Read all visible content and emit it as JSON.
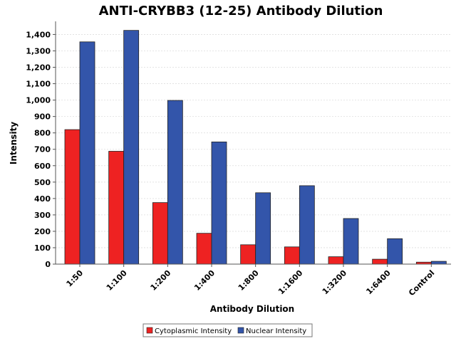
{
  "chart_data": {
    "type": "bar",
    "title": "ANTI-CRYBB3 (12-25) Antibody Dilution",
    "xlabel": "Antibody Dilution",
    "ylabel": "Intensity",
    "categories": [
      "1:50",
      "1:100",
      "1:200",
      "1:400",
      "1:800",
      "1:1600",
      "1:3200",
      "1:6400",
      "Control"
    ],
    "series": [
      {
        "name": "Cytoplasmic Intensity",
        "color": "#ee2222",
        "values": [
          820,
          688,
          375,
          188,
          118,
          105,
          45,
          30,
          12
        ]
      },
      {
        "name": "Nuclear Intensity",
        "color": "#3355aa",
        "values": [
          1355,
          1425,
          998,
          745,
          435,
          478,
          278,
          155,
          17
        ]
      }
    ],
    "ylim": [
      0,
      1480
    ],
    "yticks": [
      0,
      100,
      200,
      300,
      400,
      500,
      600,
      700,
      800,
      900,
      1000,
      1100,
      1200,
      1300,
      1400
    ],
    "ytick_labels": [
      "0",
      "100",
      "200",
      "300",
      "400",
      "500",
      "600",
      "700",
      "800",
      "900",
      "1,000",
      "1,100",
      "1,200",
      "1,300",
      "1,400"
    ],
    "grid": true,
    "legend_position": "bottom"
  }
}
